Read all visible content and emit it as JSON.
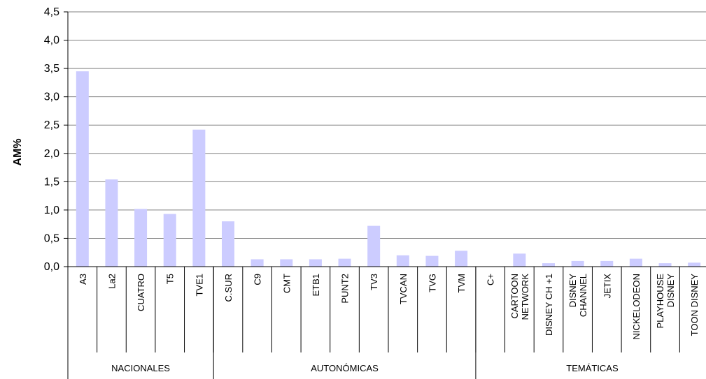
{
  "chart_data": {
    "type": "bar",
    "title": "",
    "ylabel": "AM%",
    "xlabel": "",
    "ylim": [
      0,
      4.5
    ],
    "yticks": [
      "0,0",
      "0,5",
      "1,0",
      "1,5",
      "2,0",
      "2,5",
      "3,0",
      "3,5",
      "4,0",
      "4,5"
    ],
    "grid": true,
    "colors": {
      "bar": "#ccccff",
      "grid": "#808080",
      "axis": "#000000"
    },
    "categories": [
      [
        "A3"
      ],
      [
        "La2"
      ],
      [
        "CUATRO"
      ],
      [
        "T5"
      ],
      [
        "TVE1"
      ],
      [
        "C.SUR"
      ],
      [
        "C9"
      ],
      [
        "CMT"
      ],
      [
        "ETB1"
      ],
      [
        "PUNT2"
      ],
      [
        "TV3"
      ],
      [
        "TVCAN"
      ],
      [
        "TVG"
      ],
      [
        "TVM"
      ],
      [
        "C+"
      ],
      [
        "CARTOON",
        "NETWORK"
      ],
      [
        "DISNEY CH +1"
      ],
      [
        "DISNEY",
        "CHANNEL"
      ],
      [
        "JETIX"
      ],
      [
        "NICKELODEON"
      ],
      [
        "PLAYHOUSE",
        "DISNEY"
      ],
      [
        "TOON DISNEY"
      ]
    ],
    "values": [
      3.45,
      1.54,
      1.02,
      0.93,
      2.42,
      0.8,
      0.13,
      0.13,
      0.13,
      0.14,
      0.72,
      0.2,
      0.19,
      0.28,
      0.0,
      0.23,
      0.06,
      0.1,
      0.1,
      0.14,
      0.06,
      0.07
    ],
    "groups": [
      {
        "label": "NACIONALES",
        "count": 5
      },
      {
        "label": "AUTONÓMICAS",
        "count": 9
      },
      {
        "label": "TEMÁTICAS",
        "count": 8
      }
    ]
  }
}
